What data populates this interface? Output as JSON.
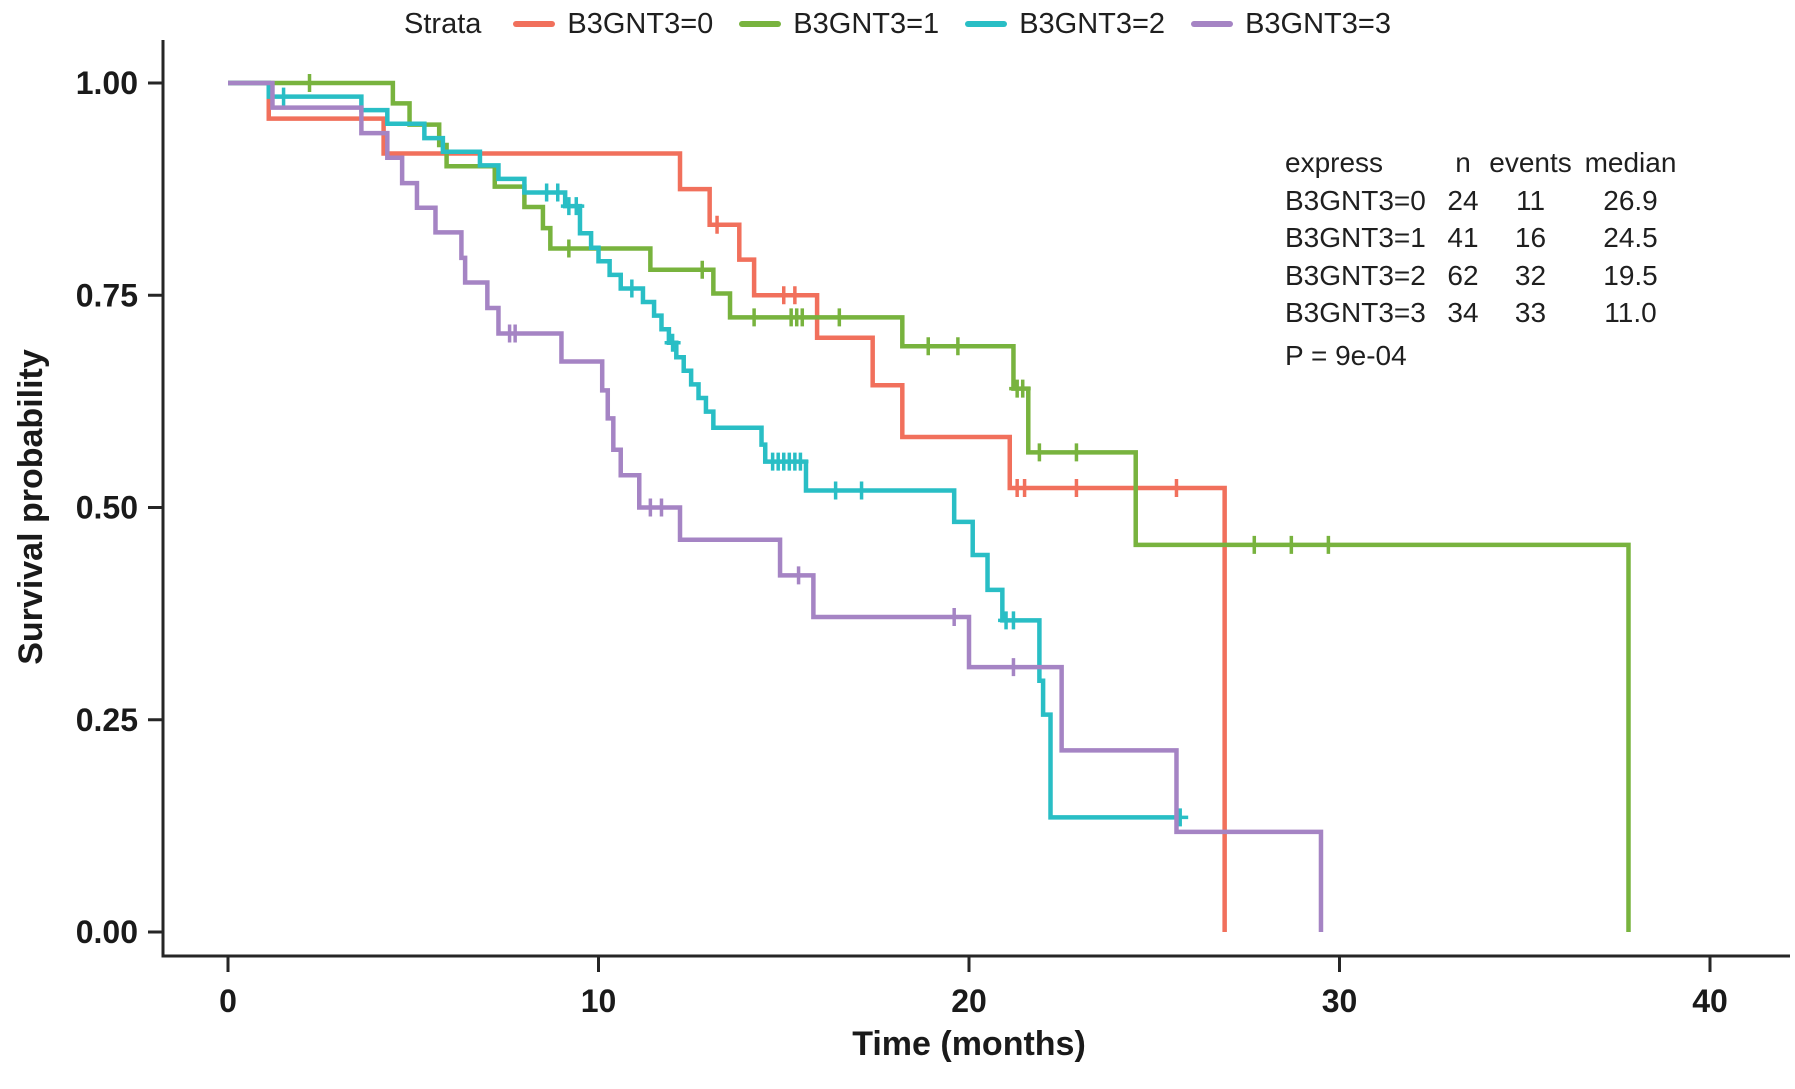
{
  "figure": {
    "legend_title": "Strata",
    "x_label": "Time (months)",
    "y_label": "Survival probability",
    "x_ticks": [
      0,
      10,
      20,
      30,
      40
    ],
    "y_ticks": [
      "1.00",
      "0.75",
      "0.50",
      "0.25",
      "0.00"
    ],
    "p_value_text": "P = 9e-04",
    "axis_color": "#262626",
    "background": "#ffffff"
  },
  "stats_table": {
    "headers": [
      "express",
      "n",
      "events",
      "median"
    ],
    "rows": [
      {
        "express": "B3GNT3=0",
        "n": "24",
        "events": "11",
        "median": "26.9"
      },
      {
        "express": "B3GNT3=1",
        "n": "41",
        "events": "16",
        "median": "24.5"
      },
      {
        "express": "B3GNT3=2",
        "n": "62",
        "events": "32",
        "median": "19.5"
      },
      {
        "express": "B3GNT3=3",
        "n": "34",
        "events": "33",
        "median": "11.0"
      }
    ]
  },
  "chart_data": {
    "type": "line",
    "subtype": "kaplan-meier-step",
    "title": "",
    "xlabel": "Time (months)",
    "ylabel": "Survival probability",
    "xlim": [
      0,
      42
    ],
    "ylim": [
      0,
      1
    ],
    "grid": false,
    "legend_position": "top",
    "series": [
      {
        "name": "B3GNT3=0",
        "color": "#F1705C",
        "n": 24,
        "events": 11,
        "median": 26.9,
        "start": [
          0,
          1.0
        ],
        "steps": [
          [
            1.1,
            0.958
          ],
          [
            4.2,
            0.917
          ],
          [
            12.2,
            0.875
          ],
          [
            13.0,
            0.833
          ],
          [
            13.8,
            0.792
          ],
          [
            14.2,
            0.75
          ],
          [
            15.9,
            0.7
          ],
          [
            17.4,
            0.644
          ],
          [
            18.2,
            0.583
          ],
          [
            21.1,
            0.523
          ],
          [
            26.9,
            0
          ]
        ],
        "censors": [
          [
            13.2,
            0.833
          ],
          [
            15.0,
            0.75
          ],
          [
            15.3,
            0.75
          ],
          [
            21.3,
            0.523
          ],
          [
            21.5,
            0.523
          ],
          [
            22.9,
            0.523
          ],
          [
            25.6,
            0.523
          ]
        ],
        "end_time": 26.9
      },
      {
        "name": "B3GNT3=1",
        "color": "#78B33E",
        "n": 41,
        "events": 16,
        "median": 24.5,
        "start": [
          0,
          1.0
        ],
        "steps": [
          [
            4.45,
            0.976
          ],
          [
            4.9,
            0.951
          ],
          [
            5.7,
            0.927
          ],
          [
            5.9,
            0.902
          ],
          [
            7.2,
            0.878
          ],
          [
            8.0,
            0.854
          ],
          [
            8.5,
            0.829
          ],
          [
            8.7,
            0.805
          ],
          [
            11.4,
            0.78
          ],
          [
            13.1,
            0.752
          ],
          [
            13.55,
            0.724
          ],
          [
            18.2,
            0.69
          ],
          [
            21.2,
            0.64
          ],
          [
            21.6,
            0.565
          ],
          [
            24.5,
            0.456
          ],
          [
            37.8,
            0
          ]
        ],
        "censors": [
          [
            2.2,
            1.0
          ],
          [
            9.2,
            0.805
          ],
          [
            12.8,
            0.78
          ],
          [
            14.2,
            0.724
          ],
          [
            15.2,
            0.724
          ],
          [
            15.35,
            0.724
          ],
          [
            15.5,
            0.724
          ],
          [
            16.5,
            0.724
          ],
          [
            18.9,
            0.69
          ],
          [
            19.7,
            0.69
          ],
          [
            21.3,
            0.64
          ],
          [
            21.45,
            0.64
          ],
          [
            21.9,
            0.565
          ],
          [
            22.9,
            0.565
          ],
          [
            27.7,
            0.456
          ],
          [
            28.7,
            0.456
          ],
          [
            29.7,
            0.456
          ]
        ],
        "end_time": 37.8
      },
      {
        "name": "B3GNT3=2",
        "color": "#29BEC5",
        "n": 62,
        "events": 32,
        "median": 19.5,
        "start": [
          0,
          1.0
        ],
        "steps": [
          [
            1.1,
            0.984
          ],
          [
            3.6,
            0.968
          ],
          [
            4.3,
            0.952
          ],
          [
            5.3,
            0.935
          ],
          [
            5.8,
            0.919
          ],
          [
            6.8,
            0.903
          ],
          [
            7.3,
            0.887
          ],
          [
            8.0,
            0.871
          ],
          [
            9.1,
            0.855
          ],
          [
            9.5,
            0.823
          ],
          [
            9.8,
            0.806
          ],
          [
            10.0,
            0.79
          ],
          [
            10.3,
            0.774
          ],
          [
            10.6,
            0.758
          ],
          [
            11.2,
            0.742
          ],
          [
            11.5,
            0.726
          ],
          [
            11.7,
            0.71
          ],
          [
            11.9,
            0.694
          ],
          [
            12.1,
            0.677
          ],
          [
            12.3,
            0.661
          ],
          [
            12.5,
            0.645
          ],
          [
            12.7,
            0.629
          ],
          [
            12.9,
            0.613
          ],
          [
            13.1,
            0.594
          ],
          [
            14.4,
            0.574
          ],
          [
            14.5,
            0.554
          ],
          [
            15.6,
            0.52
          ],
          [
            19.6,
            0.483
          ],
          [
            20.1,
            0.444
          ],
          [
            20.5,
            0.403
          ],
          [
            20.9,
            0.367
          ],
          [
            21.9,
            0.296
          ],
          [
            22.0,
            0.256
          ],
          [
            22.2,
            0.135
          ]
        ],
        "censors": [
          [
            1.5,
            0.984
          ],
          [
            8.6,
            0.871
          ],
          [
            8.9,
            0.871
          ],
          [
            9.2,
            0.855
          ],
          [
            9.4,
            0.855
          ],
          [
            10.9,
            0.758
          ],
          [
            12.0,
            0.694
          ],
          [
            14.7,
            0.554
          ],
          [
            14.85,
            0.554
          ],
          [
            15.0,
            0.554
          ],
          [
            15.15,
            0.554
          ],
          [
            15.3,
            0.554
          ],
          [
            15.45,
            0.554
          ],
          [
            16.4,
            0.52
          ],
          [
            17.1,
            0.52
          ],
          [
            21.0,
            0.367
          ],
          [
            21.2,
            0.367
          ],
          [
            25.7,
            0.135
          ]
        ],
        "end_time": 25.7
      },
      {
        "name": "B3GNT3=3",
        "color": "#A584C4",
        "n": 34,
        "events": 33,
        "median": 11.0,
        "start": [
          0,
          1.0
        ],
        "steps": [
          [
            1.2,
            0.971
          ],
          [
            3.6,
            0.941
          ],
          [
            4.3,
            0.912
          ],
          [
            4.7,
            0.882
          ],
          [
            5.1,
            0.853
          ],
          [
            5.6,
            0.824
          ],
          [
            6.3,
            0.794
          ],
          [
            6.4,
            0.765
          ],
          [
            7.0,
            0.735
          ],
          [
            7.3,
            0.705
          ],
          [
            9.0,
            0.672
          ],
          [
            10.1,
            0.638
          ],
          [
            10.25,
            0.605
          ],
          [
            10.4,
            0.568
          ],
          [
            10.6,
            0.538
          ],
          [
            11.1,
            0.5
          ],
          [
            12.2,
            0.462
          ],
          [
            14.9,
            0.42
          ],
          [
            15.8,
            0.371
          ],
          [
            20.0,
            0.312
          ],
          [
            22.5,
            0.214
          ],
          [
            25.6,
            0.118
          ],
          [
            29.5,
            0
          ]
        ],
        "censors": [
          [
            7.6,
            0.705
          ],
          [
            7.75,
            0.705
          ],
          [
            11.4,
            0.5
          ],
          [
            11.7,
            0.5
          ],
          [
            15.4,
            0.42
          ],
          [
            19.6,
            0.371
          ],
          [
            21.2,
            0.312
          ]
        ],
        "end_time": 29.5
      }
    ]
  }
}
